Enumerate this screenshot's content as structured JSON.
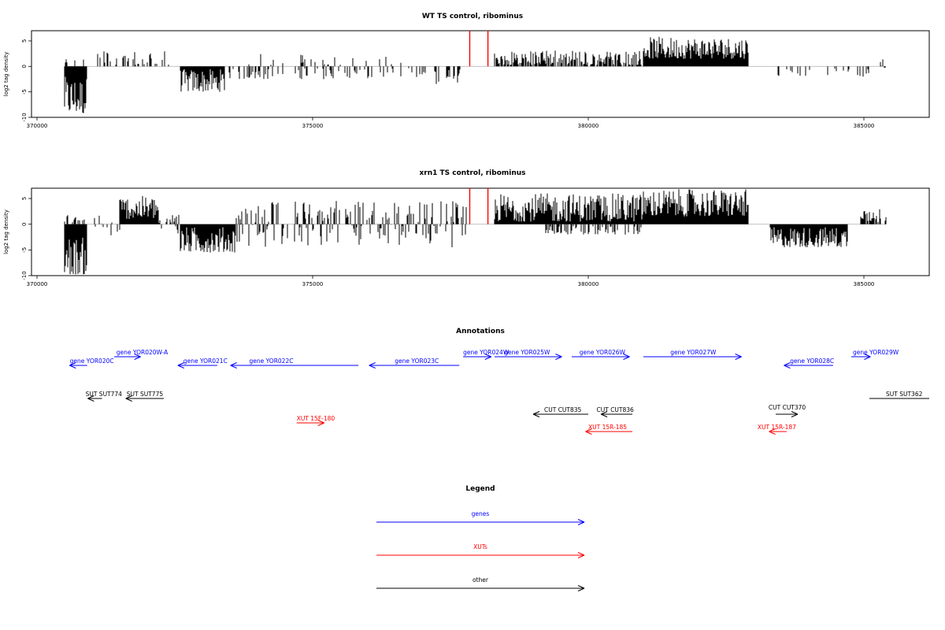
{
  "chart_data": [
    {
      "type": "bar",
      "title": "WT TS control, ribominus",
      "ylabel": "log2 tag density",
      "xlim": [
        370000,
        386800
      ],
      "ylim": [
        -10,
        7
      ],
      "x_ticks": [
        370000,
        375000,
        380000,
        385000
      ],
      "y_ticks": [
        -10,
        -5,
        0,
        5
      ],
      "y_tick_labels": [
        "-10",
        "-5",
        "0",
        "5"
      ],
      "highlight_lines": [
        {
          "x": 377850,
          "y": [
            0,
            7
          ]
        },
        {
          "x": 378180,
          "y": [
            0,
            7
          ]
        }
      ],
      "highlight_color": "#ff0000",
      "segments": [
        {
          "x_start": 370500,
          "x_end": 370900,
          "min": -9.5,
          "max": -2,
          "sign": -1
        },
        {
          "x_start": 370500,
          "x_end": 370900,
          "min": 0.5,
          "max": 2,
          "sign": 1,
          "density": 0.2
        },
        {
          "x_start": 371100,
          "x_end": 372400,
          "min": 0.3,
          "max": 3.2,
          "sign": 1,
          "density": 0.35
        },
        {
          "x_start": 372600,
          "x_end": 373400,
          "min": -5,
          "max": -0.5,
          "sign": -1
        },
        {
          "x_start": 373400,
          "x_end": 377100,
          "min": -2.5,
          "max": -0.3,
          "sign": -1,
          "density": 0.25
        },
        {
          "x_start": 373600,
          "x_end": 376600,
          "min": 0.3,
          "max": 2.5,
          "sign": 1,
          "density": 0.1
        },
        {
          "x_start": 377200,
          "x_end": 377700,
          "min": -3.5,
          "max": -0.5,
          "sign": -1,
          "density": 0.5
        },
        {
          "x_start": 378300,
          "x_end": 381000,
          "min": 0.3,
          "max": 3.2,
          "sign": 1,
          "density": 0.7
        },
        {
          "x_start": 381000,
          "x_end": 382900,
          "min": 1.5,
          "max": 5.8,
          "sign": 1
        },
        {
          "x_start": 383400,
          "x_end": 385200,
          "min": -2,
          "max": -0.3,
          "sign": -1,
          "density": 0.12
        },
        {
          "x_start": 385300,
          "x_end": 385400,
          "min": -2,
          "max": 2.3,
          "sign": 0,
          "density": 0.6
        }
      ]
    },
    {
      "type": "bar",
      "title": "xrn1 TS control, ribominus",
      "ylabel": "log2 tag density",
      "xlim": [
        370000,
        386800
      ],
      "ylim": [
        -10,
        7
      ],
      "x_ticks": [
        370000,
        375000,
        380000,
        385000
      ],
      "y_ticks": [
        -10,
        -5,
        0,
        5
      ],
      "y_tick_labels": [
        "-10",
        "-5",
        "0",
        "5"
      ],
      "highlight_lines": [
        {
          "x": 377850,
          "y": [
            0,
            7
          ]
        },
        {
          "x": 378180,
          "y": [
            0,
            7
          ]
        }
      ],
      "highlight_color": "#ff0000",
      "segments": [
        {
          "x_start": 370500,
          "x_end": 370900,
          "min": -9.8,
          "max": -2.5,
          "sign": -1
        },
        {
          "x_start": 370500,
          "x_end": 370900,
          "min": 0.3,
          "max": 2.5,
          "sign": 1,
          "density": 0.3
        },
        {
          "x_start": 371000,
          "x_end": 371500,
          "min": -2.5,
          "max": 2,
          "sign": 0,
          "density": 0.4
        },
        {
          "x_start": 371500,
          "x_end": 372200,
          "min": 1,
          "max": 5.5,
          "sign": 1
        },
        {
          "x_start": 372200,
          "x_end": 372600,
          "min": -2,
          "max": 1.5,
          "sign": 0,
          "density": 0.5
        },
        {
          "x_start": 372600,
          "x_end": 373600,
          "min": -5.5,
          "max": -0.5,
          "sign": -1
        },
        {
          "x_start": 373600,
          "x_end": 377800,
          "min": -4.5,
          "max": 2.5,
          "sign": 0,
          "density": 0.6
        },
        {
          "x_start": 378300,
          "x_end": 381000,
          "min": 0.5,
          "max": 6,
          "sign": 1
        },
        {
          "x_start": 379200,
          "x_end": 381000,
          "min": -2,
          "max": -0.3,
          "sign": -1,
          "density": 0.4
        },
        {
          "x_start": 381000,
          "x_end": 382900,
          "min": 1.5,
          "max": 6.8,
          "sign": 1
        },
        {
          "x_start": 383300,
          "x_end": 384700,
          "min": -4.5,
          "max": -0.5,
          "sign": -1
        },
        {
          "x_start": 384900,
          "x_end": 385400,
          "min": 0.3,
          "max": 3,
          "sign": 1,
          "density": 0.5
        }
      ]
    }
  ],
  "annotations": {
    "title": "Annotations",
    "items": [
      {
        "label": "gene YOR020C",
        "color": "#0000ff",
        "x_from": 370910,
        "x_to": 370590,
        "label_x": 370595,
        "row": 1
      },
      {
        "label": "gene YOR020W-A",
        "color": "#0000ff",
        "x_from": 371400,
        "x_to": 371880,
        "label_x": 371440,
        "row": 0
      },
      {
        "label": "gene YOR021C",
        "color": "#0000ff",
        "x_from": 373270,
        "x_to": 372555,
        "label_x": 372655,
        "row": 1
      },
      {
        "label": "gene YOR022C",
        "color": "#0000ff",
        "x_from": 375830,
        "x_to": 373510,
        "label_x": 373850,
        "row": 1
      },
      {
        "label": "gene YOR023C",
        "color": "#0000ff",
        "x_from": 377660,
        "x_to": 376025,
        "label_x": 376490,
        "row": 1
      },
      {
        "label": "gene YOR024W",
        "color": "#0000ff",
        "x_from": 377730,
        "x_to": 378240,
        "label_x": 377730,
        "row": 0
      },
      {
        "label": "gene YOR025W",
        "color": "#0000ff",
        "x_from": 378300,
        "x_to": 379520,
        "label_x": 378475,
        "row": 0
      },
      {
        "label": "gene YOR026W",
        "color": "#0000ff",
        "x_from": 379700,
        "x_to": 380750,
        "label_x": 379840,
        "row": 0
      },
      {
        "label": "gene YOR027W",
        "color": "#0000ff",
        "x_from": 381000,
        "x_to": 382780,
        "label_x": 381490,
        "row": 0
      },
      {
        "label": "gene YOR028C",
        "color": "#0000ff",
        "x_from": 384440,
        "x_to": 383550,
        "label_x": 383660,
        "row": 1
      },
      {
        "label": "gene YOR029W",
        "color": "#0000ff",
        "x_from": 384770,
        "x_to": 385120,
        "label_x": 384800,
        "row": 0
      },
      {
        "label": "SUT SUT774",
        "color": "#000000",
        "x_from": 371180,
        "x_to": 370920,
        "label_x": 370880,
        "row": 2
      },
      {
        "label": "SUT SUT775",
        "color": "#000000",
        "x_from": 372300,
        "x_to": 371610,
        "label_x": 371625,
        "row": 2
      },
      {
        "label": "SUT SUT362",
        "color": "#000000",
        "x_from": 385100,
        "x_to": 386800,
        "label_x": 385400,
        "row": 2,
        "plain": true
      },
      {
        "label": "CUT CUT835",
        "color": "#000000",
        "x_from": 380000,
        "x_to": 379000,
        "label_x": 379200,
        "row": 3
      },
      {
        "label": "CUT CUT836",
        "color": "#000000",
        "x_from": 380800,
        "x_to": 380230,
        "label_x": 380150,
        "row": 3
      },
      {
        "label": "CUT CUT370",
        "color": "#000000",
        "x_from": 383400,
        "x_to": 383800,
        "label_x": 383270,
        "row": 3,
        "label_above": true
      },
      {
        "label": "XUT 15F-180",
        "color": "#ff0000",
        "x_from": 374710,
        "x_to": 375210,
        "label_x": 374710,
        "row": 4
      },
      {
        "label": "XUT 15R-185",
        "color": "#ff0000",
        "x_from": 380800,
        "x_to": 379950,
        "label_x": 380000,
        "row": 5
      },
      {
        "label": "XUT 15R-187",
        "color": "#ff0000",
        "x_from": 383600,
        "x_to": 383280,
        "label_x": 383070,
        "row": 5
      }
    ]
  },
  "legend": {
    "title": "Legend",
    "items": [
      {
        "label": "genes",
        "color": "#0000ff"
      },
      {
        "label": "XUTs",
        "color": "#ff0000"
      },
      {
        "label": "other",
        "color": "#000000"
      }
    ]
  }
}
